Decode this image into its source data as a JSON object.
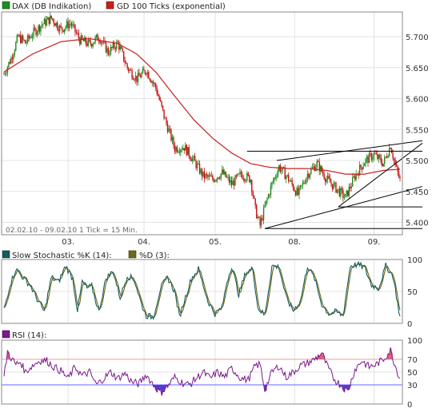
{
  "colors": {
    "up_candle": "#1e8c1e",
    "down_candle": "#c81414",
    "ma_line": "#c81e1e",
    "trend_lines": "#000000",
    "stoch_k": "#1a5c5c",
    "stoch_d": "#6b6b1a",
    "rsi_line": "#7a1a8c",
    "rsi_fill_high": "#e0607a",
    "rsi_fill_low": "#5a3ad0",
    "rsi_level_high": "#ff9999",
    "rsi_level_low": "#6666ff",
    "grid": "#e3e3e3",
    "frame": "#888888"
  },
  "chart_data": [
    {
      "type": "candlestick",
      "legend": [
        {
          "label": "DAX (DB Indikation)",
          "color": "#1e8c1e"
        },
        {
          "label": "GD 100 Ticks (exponential)",
          "color": "#c81e1e"
        }
      ],
      "info_text": "02.02.10 - 09.02.10   1 Tick = 15 Min.",
      "x_ticks": [
        "03.",
        "04.",
        "05.",
        "08.",
        "09."
      ],
      "y_ticks": [
        "5.400",
        "5.450",
        "5.500",
        "5.550",
        "5.600",
        "5.650",
        "5.700"
      ],
      "ylim": [
        5380,
        5740
      ],
      "anchors": [
        [
          0,
          5640
        ],
        [
          6,
          5665
        ],
        [
          12,
          5700
        ],
        [
          18,
          5690
        ],
        [
          24,
          5705
        ],
        [
          32,
          5720
        ],
        [
          40,
          5730
        ],
        [
          48,
          5712
        ],
        [
          56,
          5722
        ],
        [
          64,
          5695
        ],
        [
          72,
          5688
        ],
        [
          80,
          5700
        ],
        [
          88,
          5675
        ],
        [
          96,
          5690
        ],
        [
          104,
          5650
        ],
        [
          112,
          5632
        ],
        [
          120,
          5646
        ],
        [
          128,
          5618
        ],
        [
          136,
          5565
        ],
        [
          144,
          5520
        ],
        [
          152,
          5522
        ],
        [
          160,
          5500
        ],
        [
          168,
          5475
        ],
        [
          176,
          5470
        ],
        [
          184,
          5480
        ],
        [
          192,
          5462
        ],
        [
          200,
          5478
        ],
        [
          208,
          5470
        ],
        [
          212,
          5420
        ],
        [
          216,
          5395
        ],
        [
          220,
          5425
        ],
        [
          226,
          5462
        ],
        [
          232,
          5490
        ],
        [
          240,
          5470
        ],
        [
          248,
          5445
        ],
        [
          256,
          5478
        ],
        [
          264,
          5495
        ],
        [
          272,
          5470
        ],
        [
          280,
          5455
        ],
        [
          288,
          5440
        ],
        [
          296,
          5475
        ],
        [
          304,
          5498
        ],
        [
          312,
          5510
        ],
        [
          320,
          5495
        ],
        [
          326,
          5525
        ],
        [
          330,
          5492
        ],
        [
          334,
          5468
        ]
      ],
      "ma_points": [
        [
          0,
          5643
        ],
        [
          24,
          5672
        ],
        [
          48,
          5692
        ],
        [
          72,
          5697
        ],
        [
          96,
          5689
        ],
        [
          112,
          5672
        ],
        [
          128,
          5643
        ],
        [
          144,
          5604
        ],
        [
          160,
          5566
        ],
        [
          176,
          5536
        ],
        [
          192,
          5512
        ],
        [
          208,
          5495
        ],
        [
          224,
          5489
        ],
        [
          240,
          5487
        ],
        [
          256,
          5487
        ],
        [
          272,
          5484
        ],
        [
          288,
          5478
        ],
        [
          304,
          5478
        ],
        [
          320,
          5484
        ],
        [
          334,
          5486
        ]
      ],
      "trend_lines": [
        {
          "from": [
            205,
            5515
          ],
          "to": [
            334,
            5515
          ]
        },
        {
          "from": [
            220,
            5390
          ],
          "to": [
            334,
            5390
          ]
        },
        {
          "from": [
            282,
            5425
          ],
          "to": [
            334,
            5425
          ]
        },
        {
          "from": [
            220,
            5390
          ],
          "to": [
            334,
            5458
          ]
        },
        {
          "from": [
            230,
            5500
          ],
          "to": [
            334,
            5532
          ]
        },
        {
          "from": [
            282,
            5425
          ],
          "to": [
            334,
            5528
          ]
        }
      ],
      "n_bars": 335
    },
    {
      "type": "line",
      "legend": [
        {
          "label": "Slow Stochastic %K (14):",
          "color": "#1a5c5c"
        },
        {
          "label": "%D (3):",
          "color": "#6b6b1a"
        }
      ],
      "y_ticks": [
        "0",
        "50",
        "100"
      ],
      "ylim": [
        0,
        100
      ],
      "anchors": [
        [
          0,
          22
        ],
        [
          5,
          60
        ],
        [
          10,
          85
        ],
        [
          16,
          72
        ],
        [
          22,
          60
        ],
        [
          28,
          38
        ],
        [
          34,
          18
        ],
        [
          40,
          72
        ],
        [
          46,
          65
        ],
        [
          52,
          90
        ],
        [
          58,
          70
        ],
        [
          62,
          20
        ],
        [
          66,
          65
        ],
        [
          70,
          55
        ],
        [
          74,
          58
        ],
        [
          80,
          18
        ],
        [
          86,
          70
        ],
        [
          92,
          82
        ],
        [
          98,
          40
        ],
        [
          104,
          75
        ],
        [
          110,
          68
        ],
        [
          116,
          30
        ],
        [
          120,
          12
        ],
        [
          126,
          10
        ],
        [
          132,
          55
        ],
        [
          138,
          72
        ],
        [
          144,
          50
        ],
        [
          148,
          10
        ],
        [
          152,
          35
        ],
        [
          158,
          70
        ],
        [
          164,
          85
        ],
        [
          168,
          60
        ],
        [
          172,
          35
        ],
        [
          178,
          15
        ],
        [
          184,
          25
        ],
        [
          188,
          65
        ],
        [
          192,
          90
        ],
        [
          198,
          45
        ],
        [
          204,
          80
        ],
        [
          210,
          85
        ],
        [
          214,
          25
        ],
        [
          220,
          12
        ],
        [
          226,
          90
        ],
        [
          232,
          88
        ],
        [
          238,
          40
        ],
        [
          244,
          20
        ],
        [
          250,
          35
        ],
        [
          256,
          90
        ],
        [
          262,
          70
        ],
        [
          268,
          30
        ],
        [
          274,
          15
        ],
        [
          280,
          18
        ],
        [
          286,
          12
        ],
        [
          292,
          90
        ],
        [
          298,
          92
        ],
        [
          304,
          88
        ],
        [
          310,
          60
        ],
        [
          316,
          55
        ],
        [
          322,
          90
        ],
        [
          328,
          75
        ],
        [
          334,
          10
        ]
      ]
    },
    {
      "type": "line",
      "legend": [
        {
          "label": "RSI (14):",
          "color": "#7a1a8c"
        }
      ],
      "y_ticks": [
        "0",
        "30",
        "50",
        "70",
        "100"
      ],
      "ylim": [
        0,
        100
      ],
      "levels": [
        30,
        70
      ],
      "anchors": [
        [
          0,
          42
        ],
        [
          3,
          82
        ],
        [
          6,
          72
        ],
        [
          10,
          62
        ],
        [
          14,
          66
        ],
        [
          18,
          50
        ],
        [
          24,
          60
        ],
        [
          30,
          68
        ],
        [
          36,
          68
        ],
        [
          42,
          58
        ],
        [
          48,
          52
        ],
        [
          54,
          40
        ],
        [
          60,
          58
        ],
        [
          66,
          44
        ],
        [
          72,
          50
        ],
        [
          78,
          30
        ],
        [
          84,
          40
        ],
        [
          90,
          50
        ],
        [
          96,
          40
        ],
        [
          102,
          48
        ],
        [
          108,
          34
        ],
        [
          114,
          32
        ],
        [
          120,
          46
        ],
        [
          126,
          30
        ],
        [
          132,
          18
        ],
        [
          138,
          28
        ],
        [
          144,
          42
        ],
        [
          150,
          34
        ],
        [
          156,
          30
        ],
        [
          162,
          40
        ],
        [
          168,
          50
        ],
        [
          174,
          40
        ],
        [
          180,
          50
        ],
        [
          186,
          42
        ],
        [
          192,
          56
        ],
        [
          196,
          48
        ],
        [
          200,
          40
        ],
        [
          206,
          38
        ],
        [
          212,
          60
        ],
        [
          216,
          62
        ],
        [
          220,
          22
        ],
        [
          226,
          50
        ],
        [
          232,
          60
        ],
        [
          238,
          42
        ],
        [
          244,
          50
        ],
        [
          250,
          60
        ],
        [
          256,
          64
        ],
        [
          262,
          70
        ],
        [
          268,
          80
        ],
        [
          272,
          62
        ],
        [
          278,
          40
        ],
        [
          284,
          30
        ],
        [
          290,
          20
        ],
        [
          296,
          54
        ],
        [
          302,
          68
        ],
        [
          308,
          58
        ],
        [
          314,
          62
        ],
        [
          320,
          70
        ],
        [
          326,
          84
        ],
        [
          330,
          60
        ],
        [
          334,
          40
        ]
      ]
    }
  ]
}
